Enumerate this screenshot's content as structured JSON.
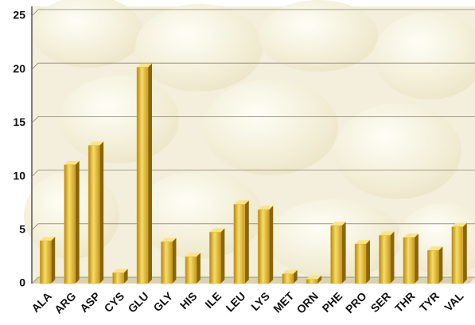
{
  "chart_data": {
    "type": "bar3d",
    "categories": [
      "ALA",
      "ARG",
      "ASP",
      "CYS",
      "GLU",
      "GLY",
      "HIS",
      "ILE",
      "LEU",
      "LYS",
      "MET",
      "ORN",
      "PHE",
      "PRO",
      "SER",
      "THR",
      "TYR",
      "VAL"
    ],
    "values": [
      4.0,
      11.1,
      12.9,
      1.0,
      20.2,
      3.9,
      2.5,
      4.8,
      7.4,
      6.9,
      0.9,
      0.4,
      5.4,
      3.7,
      4.5,
      4.3,
      3.1,
      5.3
    ],
    "color": "#e0b52e",
    "ylim": [
      0,
      25
    ],
    "yticks": [
      0,
      5,
      10,
      15,
      20,
      25
    ],
    "grid": true
  }
}
